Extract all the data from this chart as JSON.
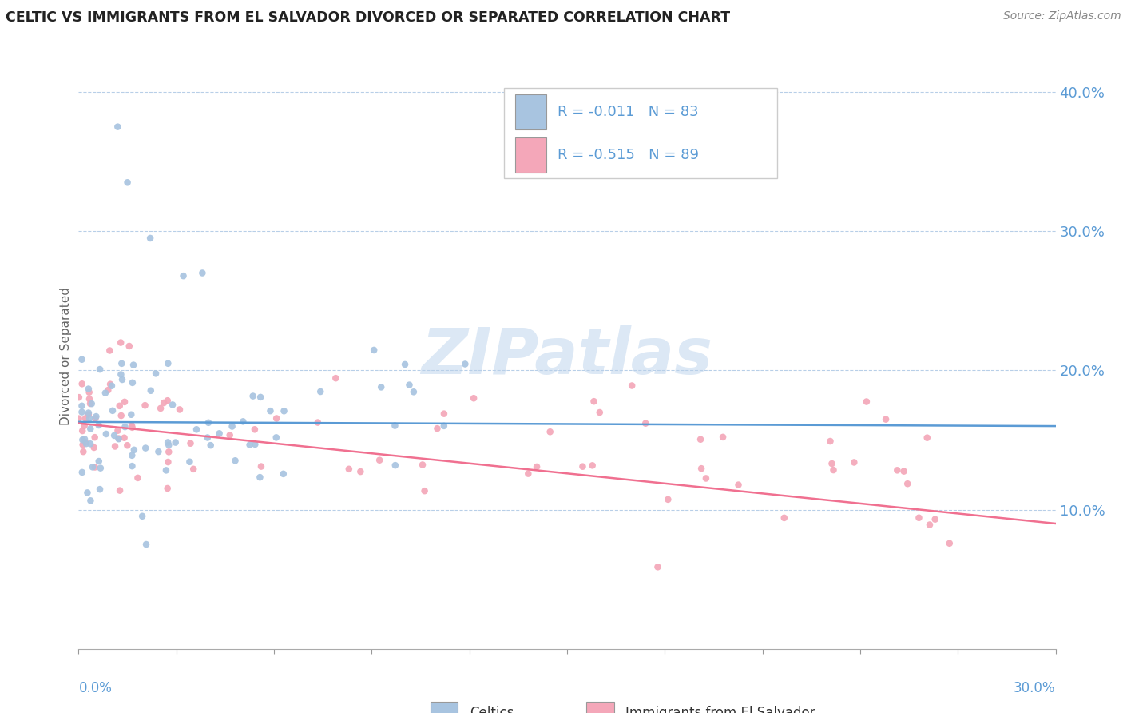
{
  "title": "CELTIC VS IMMIGRANTS FROM EL SALVADOR DIVORCED OR SEPARATED CORRELATION CHART",
  "source": "Source: ZipAtlas.com",
  "ylabel": "Divorced or Separated",
  "color_celtic": "#a8c4e0",
  "color_salvador": "#f4a7b9",
  "color_line_celtic": "#5b9bd5",
  "color_line_salvador": "#f07090",
  "watermark_color": "#dce8f5",
  "xmin": 0.0,
  "xmax": 0.3,
  "ymin": 0.0,
  "ymax": 0.42,
  "yticks": [
    0.1,
    0.2,
    0.3,
    0.4
  ],
  "ytick_labels": [
    "10.0%",
    "20.0%",
    "30.0%",
    "40.0%"
  ],
  "celtic_line_y0": 0.163,
  "celtic_line_y1": 0.16,
  "salvador_line_y0": 0.162,
  "salvador_line_y1": 0.09,
  "legend_r1": "R = -0.011",
  "legend_n1": "N = 83",
  "legend_r2": "R = -0.515",
  "legend_n2": "N = 89"
}
